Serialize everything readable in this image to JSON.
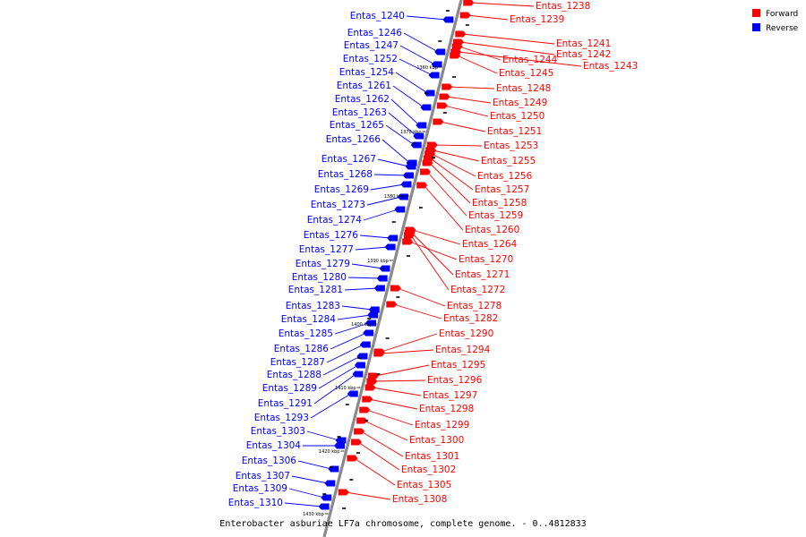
{
  "caption": "Enterobacter asburiae LF7a chromosome, complete genome. - 0..4812833",
  "legend": [
    {
      "label": "Forward",
      "color": "#ff0000"
    },
    {
      "label": "Reverse",
      "color": "#0000ff"
    }
  ],
  "colors": {
    "forward": "#ff0000",
    "reverse": "#0000ff",
    "backbone": "#808080"
  },
  "kbp_ticks": [
    "1360 kbp",
    "1370 kbp",
    "1380 kbp",
    "1390 kbp",
    "1400 kbp",
    "1410 kbp",
    "1420 kbp",
    "1430 kbp"
  ],
  "forward_genes": [
    "Entas_1238",
    "Entas_1239",
    "Entas_1241",
    "Entas_1242",
    "Entas_1243",
    "Entas_1244",
    "Entas_1245",
    "Entas_1248",
    "Entas_1249",
    "Entas_1250",
    "Entas_1251",
    "Entas_1253",
    "Entas_1255",
    "Entas_1256",
    "Entas_1257",
    "Entas_1258",
    "Entas_1259",
    "Entas_1260",
    "Entas_1264",
    "Entas_1270",
    "Entas_1271",
    "Entas_1272",
    "Entas_1278",
    "Entas_1282",
    "Entas_1290",
    "Entas_1294",
    "Entas_1295",
    "Entas_1296",
    "Entas_1297",
    "Entas_1298",
    "Entas_1299",
    "Entas_1300",
    "Entas_1301",
    "Entas_1302",
    "Entas_1305",
    "Entas_1308"
  ],
  "reverse_genes": [
    "Entas_1240",
    "Entas_1246",
    "Entas_1247",
    "Entas_1252",
    "Entas_1254",
    "Entas_1261",
    "Entas_1262",
    "Entas_1263",
    "Entas_1265",
    "Entas_1266",
    "Entas_1267",
    "Entas_1268",
    "Entas_1269",
    "Entas_1273",
    "Entas_1274",
    "Entas_1276",
    "Entas_1277",
    "Entas_1279",
    "Entas_1280",
    "Entas_1281",
    "Entas_1283",
    "Entas_1284",
    "Entas_1285",
    "Entas_1286",
    "Entas_1287",
    "Entas_1288",
    "Entas_1289",
    "Entas_1291",
    "Entas_1293",
    "Entas_1303",
    "Entas_1304",
    "Entas_1306",
    "Entas_1307",
    "Entas_1309",
    "Entas_1310"
  ]
}
